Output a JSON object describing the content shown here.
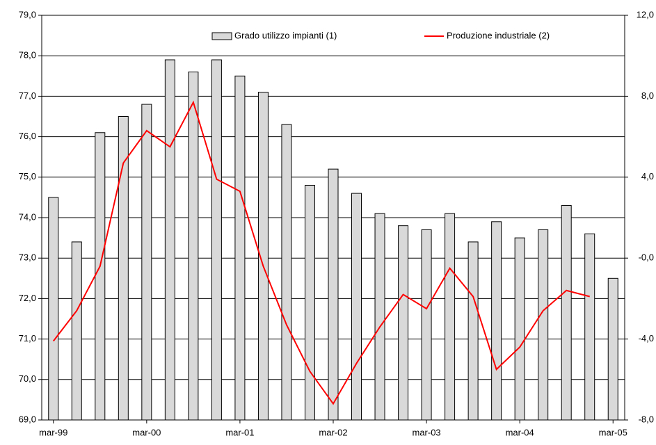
{
  "chart_data": {
    "type": "bar-line",
    "categories": [
      "mar-99",
      null,
      null,
      null,
      "mar-00",
      null,
      null,
      null,
      "mar-01",
      null,
      null,
      null,
      "mar-02",
      null,
      null,
      null,
      "mar-03",
      null,
      null,
      null,
      "mar-04",
      null,
      null,
      null,
      "mar-05"
    ],
    "series": [
      {
        "name": "Grado utilizzo impianti (1)",
        "type": "bar",
        "color": "#d9d9d9",
        "values": [
          74.5,
          73.4,
          76.1,
          76.5,
          76.8,
          77.9,
          77.6,
          77.9,
          77.5,
          77.1,
          76.3,
          74.8,
          75.2,
          74.6,
          74.1,
          73.8,
          73.7,
          74.1,
          73.4,
          73.9,
          73.5,
          73.7,
          74.3,
          73.6,
          72.5
        ]
      },
      {
        "name": "Produzione industriale (2)",
        "type": "line",
        "color": "#ff0000",
        "axis": "y2",
        "values": [
          -4.1,
          -2.6,
          -0.4,
          4.7,
          6.3,
          5.5,
          7.7,
          3.9,
          3.3,
          -0.4,
          -3.3,
          -5.6,
          -7.2,
          -5.2,
          -3.4,
          -1.8,
          -2.5,
          -0.5,
          -1.9,
          -5.5,
          -4.4,
          -2.6,
          -1.6,
          -1.9,
          null
        ]
      }
    ],
    "ylim": [
      69,
      79
    ],
    "yticks": [
      {
        "value": 69,
        "label": "69,0"
      },
      {
        "value": 70,
        "label": "70,0"
      },
      {
        "value": 71,
        "label": "71,0"
      },
      {
        "value": 72,
        "label": "72,0"
      },
      {
        "value": 73,
        "label": "73,0"
      },
      {
        "value": 74,
        "label": "74,0"
      },
      {
        "value": 75,
        "label": "75,0"
      },
      {
        "value": 76,
        "label": "76,0"
      },
      {
        "value": 77,
        "label": "77,0"
      },
      {
        "value": 78,
        "label": "78,0"
      },
      {
        "value": 79,
        "label": "79,0"
      }
    ],
    "y2lim": [
      -8,
      12
    ],
    "y2ticks": [
      {
        "value": -8,
        "label": "-8,0"
      },
      {
        "value": -4,
        "label": "-4,0"
      },
      {
        "value": 0,
        "label": "-0,0"
      },
      {
        "value": 4,
        "label": "4,0"
      },
      {
        "value": 8,
        "label": "8,0"
      },
      {
        "value": 12,
        "label": "12,0"
      }
    ],
    "grid": true
  }
}
